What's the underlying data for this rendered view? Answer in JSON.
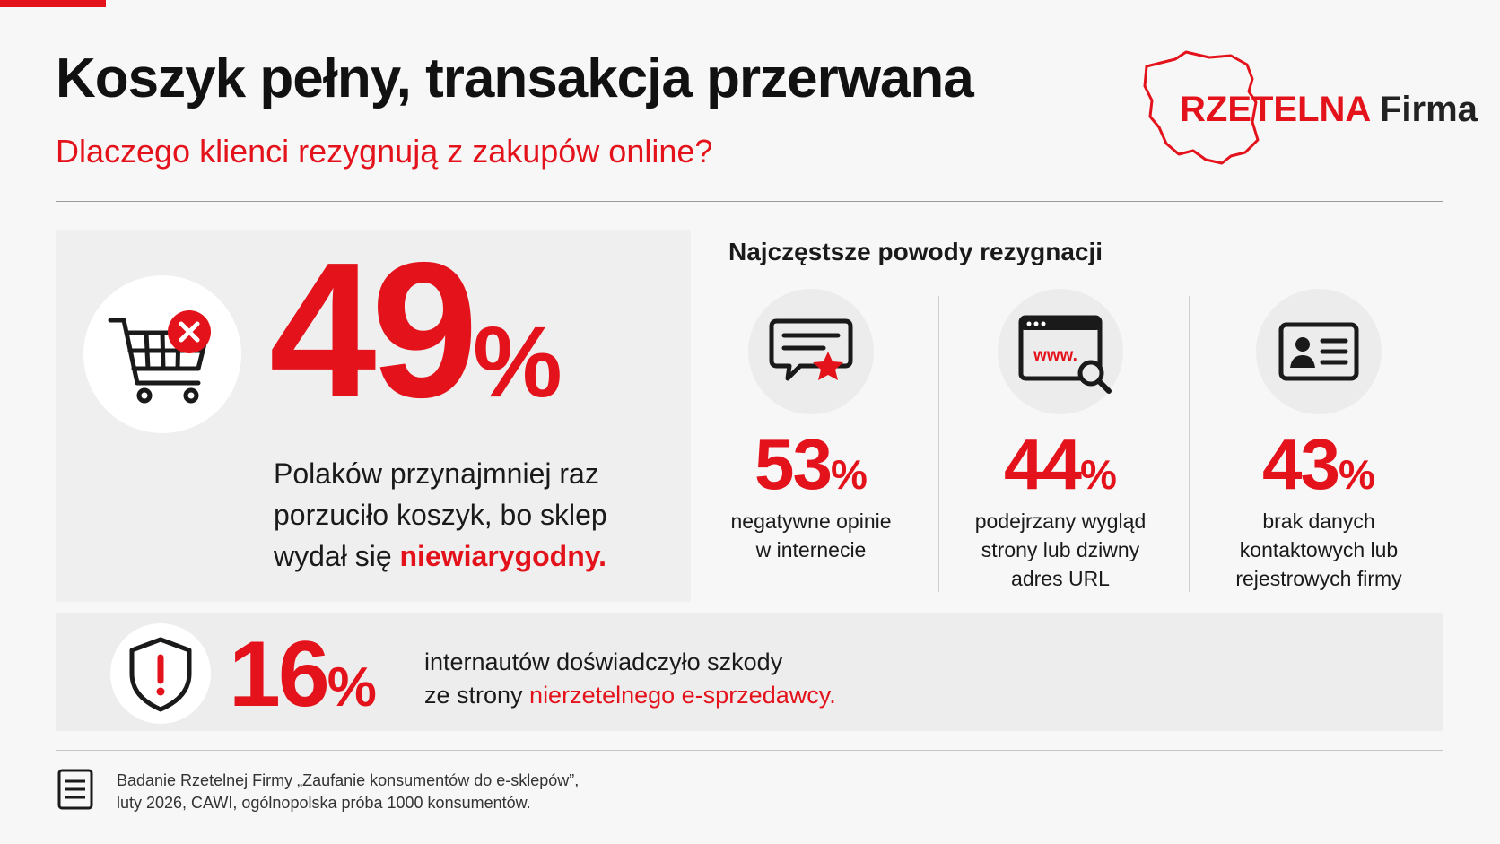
{
  "header": {
    "title": "Koszyk pełny, transakcja przerwana",
    "subtitle": "Dlaczego klienci rezygnują z zakupów online?"
  },
  "logo": {
    "brand_red": "RZETELNA",
    "brand_dark": "Firma"
  },
  "main_stat": {
    "value": "49",
    "unit": "%",
    "line1": "Polaków przynajmniej raz",
    "line2": "porzuciło koszyk, bo sklep",
    "line3_prefix": "wydał się ",
    "line3_highlight": "niewiarygodny."
  },
  "reasons": {
    "title": "Najczęstsze powody rezygnacji",
    "items": [
      {
        "icon": "review-star-icon",
        "value": "53",
        "unit": "%",
        "line1": "negatywne opinie",
        "line2": "w internecie",
        "line3": ""
      },
      {
        "icon": "browser-search-icon",
        "value": "44",
        "unit": "%",
        "line1": "podejrzany wygląd",
        "line2": "strony lub dziwny",
        "line3": "adres URL"
      },
      {
        "icon": "id-card-icon",
        "value": "43",
        "unit": "%",
        "line1": "brak danych",
        "line2": "kontaktowych lub",
        "line3": "rejestrowych firmy"
      }
    ],
    "browser_icon_text": "www."
  },
  "damage_stat": {
    "value": "16",
    "unit": "%",
    "line1": "internautów doświadczyło szkody",
    "line2_prefix": "ze strony ",
    "line2_highlight": "nierzetelnego e-sprzedawcy."
  },
  "source": {
    "line1": "Badanie Rzetelnej Firmy „Zaufanie konsumentów do e-sklepów”,",
    "line2": "luty 2026, CAWI, ogólnopolska próba 1000 konsumentów."
  },
  "colors": {
    "accent": "#e3121b",
    "text": "#141414",
    "background": "#f7f7f7"
  }
}
